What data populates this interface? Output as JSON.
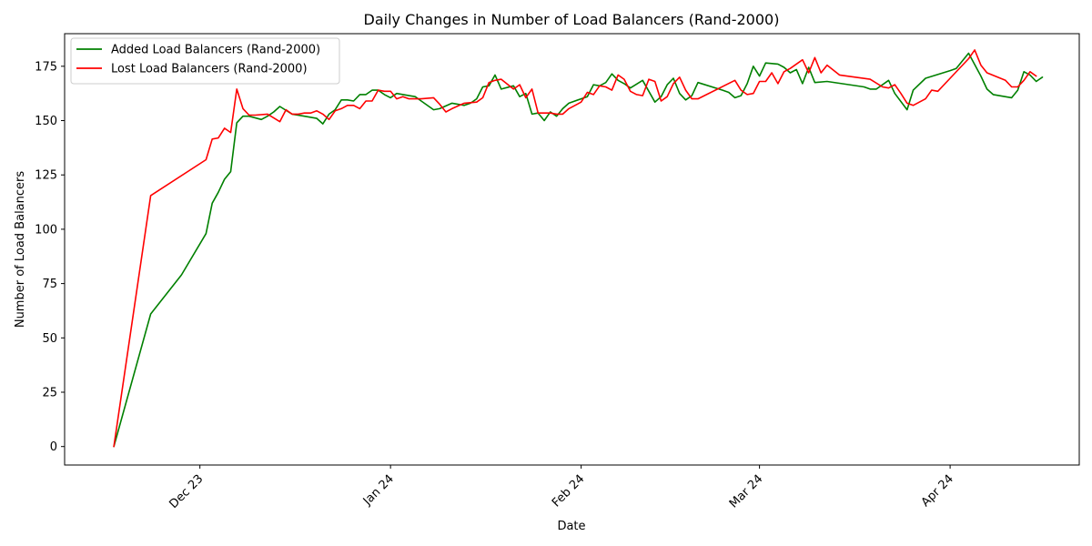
{
  "chart_data": {
    "type": "line",
    "title": "Daily Changes in Number of Load Balancers (Rand-2000)",
    "xlabel": "Date",
    "ylabel": "Number of Load Balancers",
    "xlim": [
      "2023-11-09",
      "2024-04-22"
    ],
    "ylim": [
      -8.5,
      190
    ],
    "xticks": [
      {
        "date": "2023-12-01",
        "label": "Dec 23"
      },
      {
        "date": "2024-01-01",
        "label": "Jan 24"
      },
      {
        "date": "2024-02-01",
        "label": "Feb 24"
      },
      {
        "date": "2024-03-01",
        "label": "Mar 24"
      },
      {
        "date": "2024-04-01",
        "label": "Apr 24"
      }
    ],
    "yticks": [
      0,
      25,
      50,
      75,
      100,
      125,
      150,
      175
    ],
    "grid": false,
    "legend_position": "upper-left",
    "series": [
      {
        "name": "Added Load Balancers (Rand-2000)",
        "color": "#008000",
        "points": [
          [
            "2023-11-17",
            0
          ],
          [
            "2023-11-23",
            61
          ],
          [
            "2023-11-28",
            79
          ],
          [
            "2023-12-02",
            98
          ],
          [
            "2023-12-03",
            112
          ],
          [
            "2023-12-04",
            117
          ],
          [
            "2023-12-05",
            123
          ],
          [
            "2023-12-06",
            126.5
          ],
          [
            "2023-12-07",
            149
          ],
          [
            "2023-12-08",
            152
          ],
          [
            "2023-12-09",
            152
          ],
          [
            "2023-12-11",
            150.5
          ],
          [
            "2023-12-12",
            152
          ],
          [
            "2023-12-13",
            154
          ],
          [
            "2023-12-14",
            156.5
          ],
          [
            "2023-12-16",
            153
          ],
          [
            "2023-12-18",
            152
          ],
          [
            "2023-12-20",
            151
          ],
          [
            "2023-12-21",
            148.5
          ],
          [
            "2023-12-22",
            153
          ],
          [
            "2023-12-23",
            155
          ],
          [
            "2023-12-24",
            159.5
          ],
          [
            "2023-12-25",
            159.5
          ],
          [
            "2023-12-26",
            159
          ],
          [
            "2023-12-27",
            162
          ],
          [
            "2023-12-28",
            162
          ],
          [
            "2023-12-29",
            164
          ],
          [
            "2023-12-30",
            164
          ],
          [
            "2023-12-31",
            162
          ],
          [
            "2024-01-01",
            160.5
          ],
          [
            "2024-01-02",
            162.5
          ],
          [
            "2024-01-04",
            161.5
          ],
          [
            "2024-01-05",
            161
          ],
          [
            "2024-01-06",
            159
          ],
          [
            "2024-01-08",
            155
          ],
          [
            "2024-01-09",
            155.5
          ],
          [
            "2024-01-11",
            158
          ],
          [
            "2024-01-13",
            157
          ],
          [
            "2024-01-14",
            158
          ],
          [
            "2024-01-15",
            160
          ],
          [
            "2024-01-16",
            165.5
          ],
          [
            "2024-01-17",
            166
          ],
          [
            "2024-01-18",
            171
          ],
          [
            "2024-01-19",
            164.5
          ],
          [
            "2024-01-21",
            166
          ],
          [
            "2024-01-22",
            161
          ],
          [
            "2024-01-23",
            162.5
          ],
          [
            "2024-01-24",
            153
          ],
          [
            "2024-01-25",
            153.5
          ],
          [
            "2024-01-26",
            150
          ],
          [
            "2024-01-27",
            154
          ],
          [
            "2024-01-28",
            152
          ],
          [
            "2024-01-29",
            155.5
          ],
          [
            "2024-01-30",
            158
          ],
          [
            "2024-02-01",
            160
          ],
          [
            "2024-02-02",
            161
          ],
          [
            "2024-02-03",
            166.5
          ],
          [
            "2024-02-04",
            166
          ],
          [
            "2024-02-05",
            167.5
          ],
          [
            "2024-02-06",
            171.5
          ],
          [
            "2024-02-07",
            168.5
          ],
          [
            "2024-02-08",
            167
          ],
          [
            "2024-02-09",
            165
          ],
          [
            "2024-02-11",
            168.5
          ],
          [
            "2024-02-13",
            158.5
          ],
          [
            "2024-02-14",
            161
          ],
          [
            "2024-02-15",
            166.5
          ],
          [
            "2024-02-16",
            169.5
          ],
          [
            "2024-02-17",
            162.5
          ],
          [
            "2024-02-18",
            159.5
          ],
          [
            "2024-02-19",
            161.5
          ],
          [
            "2024-02-20",
            167.5
          ],
          [
            "2024-02-24",
            164
          ],
          [
            "2024-02-25",
            163
          ],
          [
            "2024-02-26",
            160.5
          ],
          [
            "2024-02-27",
            161.5
          ],
          [
            "2024-02-28",
            167
          ],
          [
            "2024-02-29",
            175
          ],
          [
            "2024-03-01",
            170.5
          ],
          [
            "2024-03-02",
            176.5
          ],
          [
            "2024-03-04",
            176
          ],
          [
            "2024-03-05",
            174.5
          ],
          [
            "2024-03-06",
            172
          ],
          [
            "2024-03-07",
            173.5
          ],
          [
            "2024-03-08",
            167
          ],
          [
            "2024-03-09",
            174.5
          ],
          [
            "2024-03-10",
            167.5
          ],
          [
            "2024-03-12",
            168
          ],
          [
            "2024-03-18",
            165.5
          ],
          [
            "2024-03-19",
            164.5
          ],
          [
            "2024-03-20",
            164.5
          ],
          [
            "2024-03-22",
            168.5
          ],
          [
            "2024-03-23",
            162.5
          ],
          [
            "2024-03-25",
            155
          ],
          [
            "2024-03-26",
            164
          ],
          [
            "2024-03-28",
            169.5
          ],
          [
            "2024-04-01",
            173
          ],
          [
            "2024-04-02",
            174
          ],
          [
            "2024-04-04",
            181
          ],
          [
            "2024-04-06",
            170.5
          ],
          [
            "2024-04-07",
            164.5
          ],
          [
            "2024-04-08",
            162
          ],
          [
            "2024-04-11",
            160.5
          ],
          [
            "2024-04-12",
            164
          ],
          [
            "2024-04-13",
            172.5
          ],
          [
            "2024-04-14",
            171
          ],
          [
            "2024-04-15",
            168
          ],
          [
            "2024-04-16",
            170
          ]
        ]
      },
      {
        "name": "Lost Load Balancers (Rand-2000)",
        "color": "#ff0000",
        "points": [
          [
            "2023-11-17",
            0
          ],
          [
            "2023-11-23",
            115.5
          ],
          [
            "2023-12-02",
            132
          ],
          [
            "2023-12-03",
            141.5
          ],
          [
            "2023-12-04",
            142
          ],
          [
            "2023-12-05",
            146.5
          ],
          [
            "2023-12-06",
            144.5
          ],
          [
            "2023-12-07",
            164.5
          ],
          [
            "2023-12-08",
            155.5
          ],
          [
            "2023-12-09",
            152.5
          ],
          [
            "2023-12-10",
            152.5
          ],
          [
            "2023-12-12",
            153
          ],
          [
            "2023-12-14",
            149.5
          ],
          [
            "2023-12-15",
            155
          ],
          [
            "2023-12-16",
            153
          ],
          [
            "2023-12-17",
            153
          ],
          [
            "2023-12-18",
            153.5
          ],
          [
            "2023-12-19",
            153.5
          ],
          [
            "2023-12-20",
            154.5
          ],
          [
            "2023-12-21",
            153
          ],
          [
            "2023-12-22",
            150.5
          ],
          [
            "2023-12-23",
            154.5
          ],
          [
            "2023-12-24",
            155.5
          ],
          [
            "2023-12-25",
            157
          ],
          [
            "2023-12-26",
            157
          ],
          [
            "2023-12-27",
            155.5
          ],
          [
            "2023-12-28",
            159
          ],
          [
            "2023-12-29",
            159
          ],
          [
            "2023-12-30",
            164
          ],
          [
            "2023-12-31",
            163.5
          ],
          [
            "2024-01-01",
            163.5
          ],
          [
            "2024-01-02",
            160
          ],
          [
            "2024-01-03",
            161
          ],
          [
            "2024-01-04",
            160
          ],
          [
            "2024-01-06",
            160
          ],
          [
            "2024-01-08",
            160.5
          ],
          [
            "2024-01-09",
            157.5
          ],
          [
            "2024-01-10",
            154
          ],
          [
            "2024-01-11",
            155.5
          ],
          [
            "2024-01-13",
            158
          ],
          [
            "2024-01-15",
            158.5
          ],
          [
            "2024-01-16",
            160.5
          ],
          [
            "2024-01-17",
            167.5
          ],
          [
            "2024-01-18",
            168.5
          ],
          [
            "2024-01-19",
            169
          ],
          [
            "2024-01-21",
            164.5
          ],
          [
            "2024-01-22",
            166.5
          ],
          [
            "2024-01-23",
            160.5
          ],
          [
            "2024-01-24",
            164.5
          ],
          [
            "2024-01-25",
            153.5
          ],
          [
            "2024-01-26",
            153.5
          ],
          [
            "2024-01-27",
            153.5
          ],
          [
            "2024-01-28",
            153
          ],
          [
            "2024-01-29",
            153
          ],
          [
            "2024-01-30",
            155.5
          ],
          [
            "2024-01-31",
            157
          ],
          [
            "2024-02-01",
            158.5
          ],
          [
            "2024-02-02",
            163
          ],
          [
            "2024-02-03",
            162
          ],
          [
            "2024-02-04",
            166
          ],
          [
            "2024-02-05",
            165.5
          ],
          [
            "2024-02-06",
            164
          ],
          [
            "2024-02-07",
            171
          ],
          [
            "2024-02-08",
            169
          ],
          [
            "2024-02-09",
            163.5
          ],
          [
            "2024-02-10",
            162
          ],
          [
            "2024-02-11",
            161.5
          ],
          [
            "2024-02-12",
            169
          ],
          [
            "2024-02-13",
            168
          ],
          [
            "2024-02-14",
            159
          ],
          [
            "2024-02-15",
            161
          ],
          [
            "2024-02-16",
            167
          ],
          [
            "2024-02-17",
            170
          ],
          [
            "2024-02-18",
            164
          ],
          [
            "2024-02-19",
            160
          ],
          [
            "2024-02-20",
            160
          ],
          [
            "2024-02-26",
            168.5
          ],
          [
            "2024-02-27",
            164
          ],
          [
            "2024-02-28",
            162
          ],
          [
            "2024-02-29",
            162.5
          ],
          [
            "2024-03-01",
            168
          ],
          [
            "2024-03-02",
            168
          ],
          [
            "2024-03-03",
            172
          ],
          [
            "2024-03-04",
            167
          ],
          [
            "2024-03-05",
            172.5
          ],
          [
            "2024-03-06",
            174
          ],
          [
            "2024-03-08",
            178
          ],
          [
            "2024-03-09",
            172
          ],
          [
            "2024-03-10",
            179
          ],
          [
            "2024-03-11",
            172
          ],
          [
            "2024-03-12",
            175.5
          ],
          [
            "2024-03-14",
            171
          ],
          [
            "2024-03-19",
            169
          ],
          [
            "2024-03-21",
            165.5
          ],
          [
            "2024-03-22",
            165
          ],
          [
            "2024-03-23",
            166.5
          ],
          [
            "2024-03-24",
            162.5
          ],
          [
            "2024-03-25",
            158
          ],
          [
            "2024-03-26",
            157
          ],
          [
            "2024-03-28",
            160
          ],
          [
            "2024-03-29",
            164
          ],
          [
            "2024-03-30",
            163.5
          ],
          [
            "2024-04-01",
            169.5
          ],
          [
            "2024-04-04",
            178.5
          ],
          [
            "2024-04-05",
            182.5
          ],
          [
            "2024-04-06",
            175.5
          ],
          [
            "2024-04-07",
            172
          ],
          [
            "2024-04-10",
            168.5
          ],
          [
            "2024-04-11",
            165.5
          ],
          [
            "2024-04-12",
            165.5
          ],
          [
            "2024-04-13",
            168.5
          ],
          [
            "2024-04-14",
            172.5
          ],
          [
            "2024-04-15",
            170.5
          ]
        ]
      }
    ]
  }
}
